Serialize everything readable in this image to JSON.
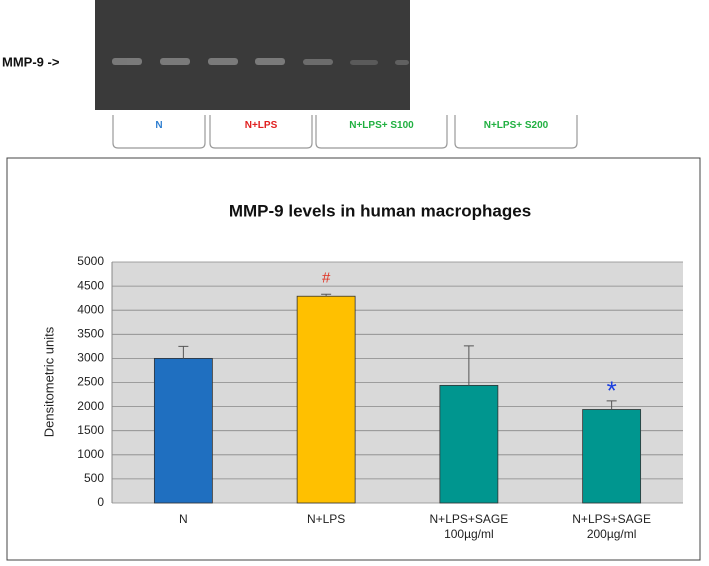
{
  "gel": {
    "marker_label": "MMP-9 ->",
    "groups": [
      {
        "label": "N",
        "color": "#2f7fd0"
      },
      {
        "label": "N+LPS",
        "color": "#e02020"
      },
      {
        "label": "N+LPS+ S100",
        "color": "#20b040"
      },
      {
        "label": "N+LPS+ S200",
        "color": "#20b040"
      }
    ]
  },
  "chart_data": {
    "type": "bar",
    "title": "MMP-9 levels in human macrophages",
    "y_label": "Densitometric units",
    "categories": [
      "N",
      "N+LPS",
      "N+LPS+SAGE 100µg/ml",
      "N+LPS+SAGE 200µg/ml"
    ],
    "values": [
      3000,
      4290,
      2440,
      1940
    ],
    "errors": [
      250,
      40,
      820,
      180
    ],
    "colors": [
      "#1f6fc0",
      "#ffc000",
      "#00968f",
      "#00968f"
    ],
    "annotations": [
      null,
      "#",
      null,
      "*"
    ],
    "annotation_colors": [
      null,
      "#e03020",
      null,
      "#1a3ee0"
    ],
    "ylim": [
      0,
      5000
    ],
    "yticks": [
      0,
      500,
      1000,
      1500,
      2000,
      2500,
      3000,
      3500,
      4000,
      4500,
      5000
    ],
    "grid": true
  }
}
